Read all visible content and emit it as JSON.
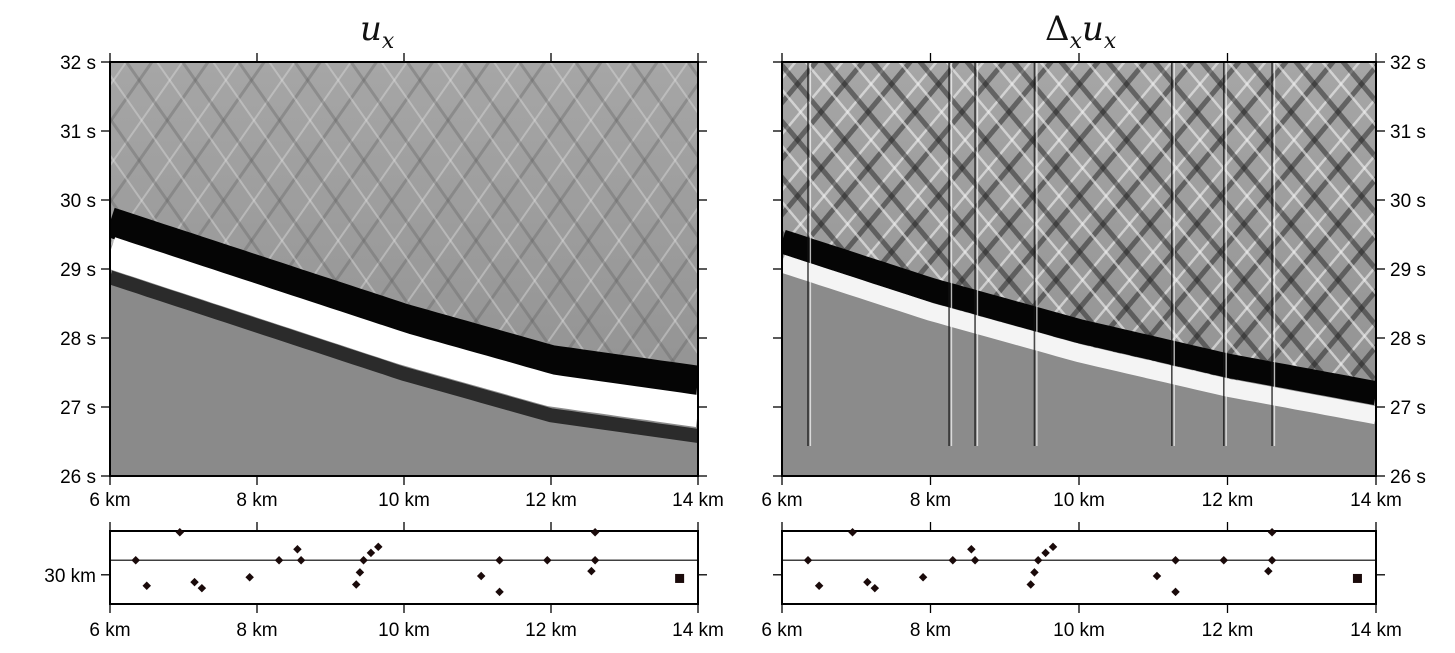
{
  "chart_data": [
    {
      "type": "heatmap",
      "panel": "left",
      "title": {
        "main": "u",
        "sub": "x"
      },
      "x_axis": {
        "range": [
          6,
          14
        ],
        "ticks": [
          6,
          8,
          10,
          12,
          14
        ],
        "tick_labels": [
          "6 km",
          "8 km",
          "10 km",
          "12 km",
          "14 km"
        ]
      },
      "y_axis": {
        "range": [
          26,
          32
        ],
        "ticks": [
          26,
          27,
          28,
          29,
          30,
          31,
          32
        ],
        "tick_labels": [
          "26 s",
          "27 s",
          "28 s",
          "29 s",
          "30 s",
          "31 s",
          "32 s"
        ],
        "side": "left"
      },
      "colormap": "grayscale",
      "first_arrival": {
        "x": [
          6,
          8,
          10,
          12,
          14
        ],
        "t": [
          29.6,
          28.9,
          28.2,
          27.6,
          27.3
        ]
      }
    },
    {
      "type": "heatmap",
      "panel": "right",
      "title": {
        "prefix": "Δ",
        "prefix_sub": "x",
        "main": "u",
        "sub": "x"
      },
      "x_axis": {
        "range": [
          6,
          14
        ],
        "ticks": [
          6,
          8,
          10,
          12,
          14
        ],
        "tick_labels": [
          "6 km",
          "8 km",
          "10 km",
          "12 km",
          "14 km"
        ]
      },
      "y_axis": {
        "range": [
          26,
          32
        ],
        "ticks": [
          26,
          27,
          28,
          29,
          30,
          31,
          32
        ],
        "tick_labels": [
          "26 s",
          "27 s",
          "28 s",
          "29 s",
          "30 s",
          "31 s",
          "32 s"
        ],
        "side": "right"
      },
      "colormap": "grayscale",
      "first_arrival": {
        "x": [
          6,
          8,
          10,
          12,
          14
        ],
        "t": [
          29.4,
          28.7,
          28.1,
          27.6,
          27.2
        ]
      },
      "vertical_artifacts_x": [
        6.35,
        8.25,
        8.6,
        9.4,
        11.25,
        11.95,
        12.6
      ]
    },
    {
      "type": "scatter",
      "panel": "bottom-left",
      "x_axis": {
        "range": [
          6,
          14
        ],
        "ticks": [
          6,
          8,
          10,
          12,
          14
        ],
        "tick_labels": [
          "6 km",
          "8 km",
          "10 km",
          "12 km",
          "14 km"
        ]
      },
      "y_axis": {
        "range": [
          28.8,
          31.8
        ],
        "ticks": [
          30
        ],
        "tick_labels": [
          "30 km"
        ],
        "side": "left"
      },
      "reference_line_y": 30.6,
      "points": [
        {
          "x": 6.35,
          "y": 30.6
        },
        {
          "x": 6.5,
          "y": 29.55
        },
        {
          "x": 6.95,
          "y": 31.75
        },
        {
          "x": 7.15,
          "y": 29.7
        },
        {
          "x": 7.25,
          "y": 29.45
        },
        {
          "x": 7.9,
          "y": 29.9
        },
        {
          "x": 8.3,
          "y": 30.6
        },
        {
          "x": 8.55,
          "y": 31.05
        },
        {
          "x": 8.6,
          "y": 30.6
        },
        {
          "x": 9.35,
          "y": 29.6
        },
        {
          "x": 9.4,
          "y": 30.1
        },
        {
          "x": 9.45,
          "y": 30.6
        },
        {
          "x": 9.55,
          "y": 30.9
        },
        {
          "x": 9.65,
          "y": 31.15
        },
        {
          "x": 11.05,
          "y": 29.95
        },
        {
          "x": 11.3,
          "y": 29.3
        },
        {
          "x": 11.3,
          "y": 30.6
        },
        {
          "x": 11.95,
          "y": 30.6
        },
        {
          "x": 12.55,
          "y": 30.15
        },
        {
          "x": 12.6,
          "y": 30.6
        },
        {
          "x": 12.6,
          "y": 31.75
        },
        {
          "x": 13.75,
          "y": 29.85,
          "square": true
        }
      ]
    },
    {
      "type": "scatter",
      "panel": "bottom-right",
      "x_axis": {
        "range": [
          6,
          14
        ],
        "ticks": [
          6,
          8,
          10,
          12,
          14
        ],
        "tick_labels": [
          "6 km",
          "8 km",
          "10 km",
          "12 km",
          "14 km"
        ]
      },
      "y_axis": {
        "range": [
          28.8,
          31.8
        ],
        "ticks": [
          30
        ],
        "tick_labels": [
          ""
        ],
        "side": "left"
      },
      "reference_line_y": 30.6,
      "points": [
        {
          "x": 6.35,
          "y": 30.6
        },
        {
          "x": 6.5,
          "y": 29.55
        },
        {
          "x": 6.95,
          "y": 31.75
        },
        {
          "x": 7.15,
          "y": 29.7
        },
        {
          "x": 7.25,
          "y": 29.45
        },
        {
          "x": 7.9,
          "y": 29.9
        },
        {
          "x": 8.3,
          "y": 30.6
        },
        {
          "x": 8.55,
          "y": 31.05
        },
        {
          "x": 8.6,
          "y": 30.6
        },
        {
          "x": 9.35,
          "y": 29.6
        },
        {
          "x": 9.4,
          "y": 30.1
        },
        {
          "x": 9.45,
          "y": 30.6
        },
        {
          "x": 9.55,
          "y": 30.9
        },
        {
          "x": 9.65,
          "y": 31.15
        },
        {
          "x": 11.05,
          "y": 29.95
        },
        {
          "x": 11.3,
          "y": 29.3
        },
        {
          "x": 11.3,
          "y": 30.6
        },
        {
          "x": 11.95,
          "y": 30.6
        },
        {
          "x": 12.55,
          "y": 30.15
        },
        {
          "x": 12.6,
          "y": 30.6
        },
        {
          "x": 12.6,
          "y": 31.75
        },
        {
          "x": 13.75,
          "y": 29.85,
          "square": true
        }
      ]
    }
  ],
  "colors": {
    "background": "#ffffff",
    "gray": "#8a8a8a",
    "frame": "#000000",
    "marker": "#1a0a0a"
  }
}
